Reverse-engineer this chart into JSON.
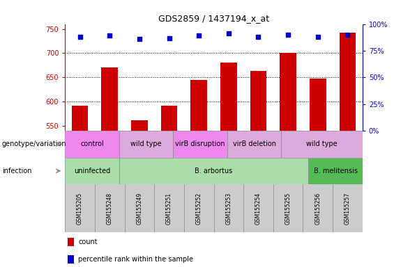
{
  "title": "GDS2859 / 1437194_x_at",
  "samples": [
    "GSM155205",
    "GSM155248",
    "GSM155249",
    "GSM155251",
    "GSM155252",
    "GSM155253",
    "GSM155254",
    "GSM155255",
    "GSM155256",
    "GSM155257"
  ],
  "counts": [
    592,
    670,
    562,
    592,
    645,
    680,
    663,
    700,
    648,
    742
  ],
  "percentile_values": [
    88,
    89,
    86,
    87,
    89,
    91,
    88,
    90,
    88,
    90
  ],
  "ylim_left": [
    540,
    760
  ],
  "ylim_right": [
    0,
    100
  ],
  "yticks_left": [
    550,
    600,
    650,
    700,
    750
  ],
  "yticks_right": [
    0,
    25,
    50,
    75,
    100
  ],
  "ytick_right_labels": [
    "0%",
    "25%",
    "50%",
    "75%",
    "100%"
  ],
  "bar_color": "#cc0000",
  "dot_color": "#0000cc",
  "bar_width": 0.55,
  "grid_lines": [
    600,
    650,
    700
  ],
  "infection_groups": [
    {
      "label": "uninfected",
      "start": 0,
      "end": 2,
      "color": "#aaddaa"
    },
    {
      "label": "B. arbortus",
      "start": 2,
      "end": 9,
      "color": "#aaddaa"
    },
    {
      "label": "B. melitensis",
      "start": 9,
      "end": 11,
      "color": "#55bb55"
    }
  ],
  "genotype_groups": [
    {
      "label": "control",
      "start": 0,
      "end": 2,
      "color": "#ee88ee"
    },
    {
      "label": "wild type",
      "start": 2,
      "end": 4,
      "color": "#ddaadd"
    },
    {
      "label": "virB disruption",
      "start": 4,
      "end": 6,
      "color": "#ee88ee"
    },
    {
      "label": "virB deletion",
      "start": 6,
      "end": 8,
      "color": "#ddaadd"
    },
    {
      "label": "wild type",
      "start": 8,
      "end": 11,
      "color": "#ddaadd"
    }
  ],
  "infection_label": "infection",
  "genotype_label": "genotype/variation",
  "legend_count_label": "count",
  "legend_percentile_label": "percentile rank within the sample",
  "tick_row_color": "#cccccc",
  "left_label_color": "#888888"
}
